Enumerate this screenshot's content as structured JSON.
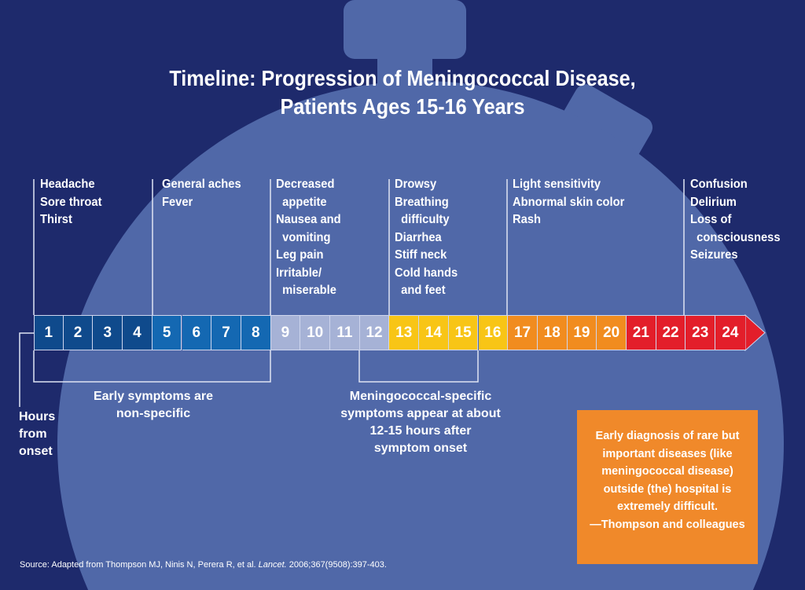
{
  "title": [
    "Timeline: Progression of Meningococcal Disease,",
    "Patients Ages 15-16 Years"
  ],
  "symptoms": [
    {
      "lines": "Headache\nSore throat\nThirst"
    },
    {
      "lines": "General aches\nFever"
    },
    {
      "lines": "Decreased\n  appetite\nNausea and\n  vomiting\nLeg pain\nIrritable/\n  miserable"
    },
    {
      "lines": "Drowsy\nBreathing\n  difficulty\nDiarrhea\nStiff neck\nCold hands\n  and feet"
    },
    {
      "lines": "Light sensitivity\nAbnormal skin color\nRash"
    },
    {
      "lines": "Confusion\nDelirium\nLoss of\n  consciousness\nSeizures"
    }
  ],
  "hours": [
    "1",
    "2",
    "3",
    "4",
    "5",
    "6",
    "7",
    "8",
    "9",
    "10",
    "11",
    "12",
    "13",
    "14",
    "15",
    "16",
    "17",
    "18",
    "19",
    "20",
    "21",
    "22",
    "23",
    "24"
  ],
  "colors": [
    "#0f4a8c",
    "#0f4a8c",
    "#0f4a8c",
    "#0f4a8c",
    "#1468b2",
    "#1468b2",
    "#1468b2",
    "#1468b2",
    "#a6b2d6",
    "#a6b2d6",
    "#a6b2d6",
    "#a6b2d6",
    "#f8c516",
    "#f8c516",
    "#f8c516",
    "#f8c516",
    "#f18c1f",
    "#f18c1f",
    "#f18c1f",
    "#f18c1f",
    "#e31e2a",
    "#e31e2a",
    "#e31e2a",
    "#e31e2a"
  ],
  "axis_label": "Hours\nfrom\nonset",
  "early_note": "Early symptoms are\nnon-specific",
  "specific_note": "Meningococcal-specific\nsymptoms appear at about\n12-15 hours after\nsymptom onset",
  "quote": "Early diagnosis of rare but important diseases (like meningococcal disease) outside (the) hospital is extremely difficult.\n—Thompson and colleagues",
  "source_prefix": "Source: Adapted from Thompson MJ, Ninis N, Perera R, et al. ",
  "source_journal": "Lancet.",
  "source_suffix": " 2006;367(9508):397-403."
}
